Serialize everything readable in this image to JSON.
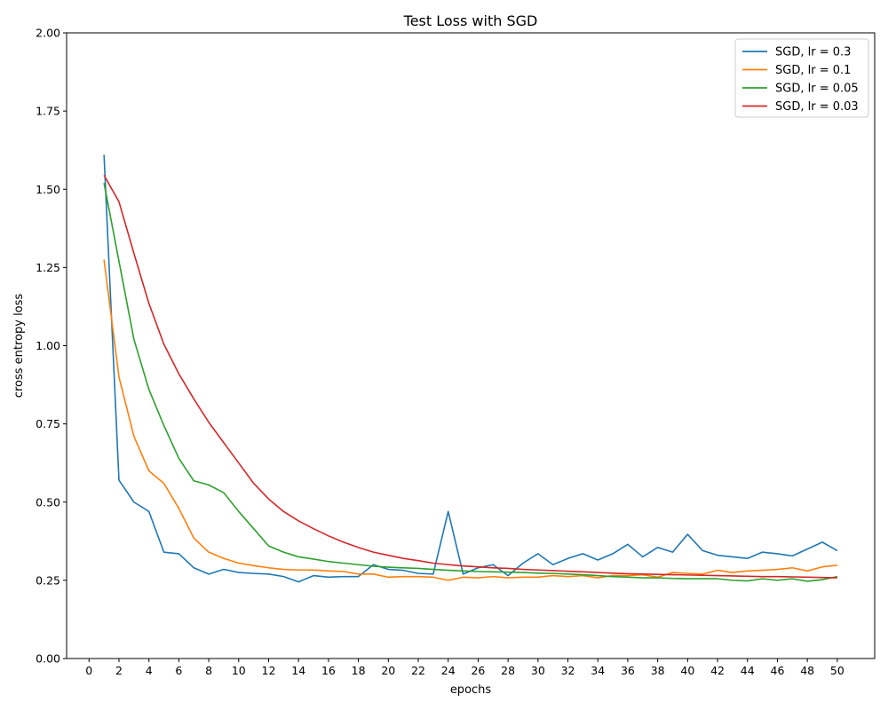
{
  "chart_data": {
    "type": "line",
    "title": "Test Loss with SGD",
    "xlabel": "epochs",
    "ylabel": "cross entropy loss",
    "xlim": [
      -1.5,
      52.5
    ],
    "ylim": [
      0,
      2.0
    ],
    "x_ticks": [
      0,
      2,
      4,
      6,
      8,
      10,
      12,
      14,
      16,
      18,
      20,
      22,
      24,
      26,
      28,
      30,
      32,
      34,
      36,
      38,
      40,
      42,
      44,
      46,
      48,
      50
    ],
    "y_ticks": [
      "0.00",
      "0.25",
      "0.50",
      "0.75",
      "1.00",
      "1.25",
      "1.50",
      "1.75",
      "2.00"
    ],
    "grid": false,
    "legend_position": "top-right",
    "x": [
      1,
      2,
      3,
      4,
      5,
      6,
      7,
      8,
      9,
      10,
      11,
      12,
      13,
      14,
      15,
      16,
      17,
      18,
      19,
      20,
      21,
      22,
      23,
      24,
      25,
      26,
      27,
      28,
      29,
      30,
      31,
      32,
      33,
      34,
      35,
      36,
      37,
      38,
      39,
      40,
      41,
      42,
      43,
      44,
      45,
      46,
      47,
      48,
      49,
      50
    ],
    "series": [
      {
        "name": "SGD, lr = 0.3",
        "color": "#1f77b4",
        "values": [
          1.61,
          0.57,
          0.5,
          0.47,
          0.34,
          0.335,
          0.29,
          0.27,
          0.285,
          0.275,
          0.272,
          0.27,
          0.262,
          0.245,
          0.265,
          0.26,
          0.262,
          0.262,
          0.3,
          0.285,
          0.282,
          0.272,
          0.27,
          0.47,
          0.27,
          0.29,
          0.3,
          0.265,
          0.305,
          0.335,
          0.3,
          0.32,
          0.335,
          0.315,
          0.335,
          0.365,
          0.325,
          0.355,
          0.34,
          0.397,
          0.345,
          0.33,
          0.325,
          0.32,
          0.34,
          0.335,
          0.328,
          0.35,
          0.372,
          0.345
        ]
      },
      {
        "name": "SGD, lr = 0.1",
        "color": "#ff7f0e",
        "values": [
          1.275,
          0.9,
          0.71,
          0.6,
          0.56,
          0.48,
          0.385,
          0.34,
          0.32,
          0.305,
          0.297,
          0.29,
          0.285,
          0.283,
          0.283,
          0.28,
          0.278,
          0.27,
          0.27,
          0.26,
          0.262,
          0.262,
          0.26,
          0.25,
          0.26,
          0.258,
          0.262,
          0.258,
          0.26,
          0.26,
          0.265,
          0.262,
          0.265,
          0.258,
          0.265,
          0.265,
          0.268,
          0.26,
          0.275,
          0.272,
          0.27,
          0.282,
          0.275,
          0.28,
          0.282,
          0.285,
          0.29,
          0.28,
          0.293,
          0.298
        ]
      },
      {
        "name": "SGD, lr = 0.05",
        "color": "#2ca02c",
        "values": [
          1.52,
          1.27,
          1.02,
          0.86,
          0.745,
          0.64,
          0.568,
          0.555,
          0.53,
          0.47,
          0.415,
          0.36,
          0.34,
          0.325,
          0.318,
          0.31,
          0.305,
          0.3,
          0.295,
          0.292,
          0.29,
          0.288,
          0.285,
          0.282,
          0.28,
          0.278,
          0.277,
          0.276,
          0.275,
          0.273,
          0.272,
          0.27,
          0.268,
          0.265,
          0.262,
          0.26,
          0.258,
          0.258,
          0.256,
          0.255,
          0.255,
          0.255,
          0.25,
          0.248,
          0.255,
          0.25,
          0.255,
          0.247,
          0.252,
          0.262
        ]
      },
      {
        "name": "SGD, lr = 0.03",
        "color": "#d62728",
        "values": [
          1.545,
          1.46,
          1.295,
          1.135,
          1.005,
          0.91,
          0.83,
          0.755,
          0.69,
          0.625,
          0.56,
          0.51,
          0.47,
          0.44,
          0.415,
          0.392,
          0.372,
          0.355,
          0.34,
          0.33,
          0.32,
          0.313,
          0.305,
          0.3,
          0.296,
          0.293,
          0.29,
          0.288,
          0.285,
          0.283,
          0.281,
          0.279,
          0.277,
          0.275,
          0.273,
          0.271,
          0.27,
          0.269,
          0.268,
          0.267,
          0.266,
          0.265,
          0.264,
          0.263,
          0.262,
          0.262,
          0.261,
          0.26,
          0.259,
          0.258
        ]
      }
    ]
  }
}
